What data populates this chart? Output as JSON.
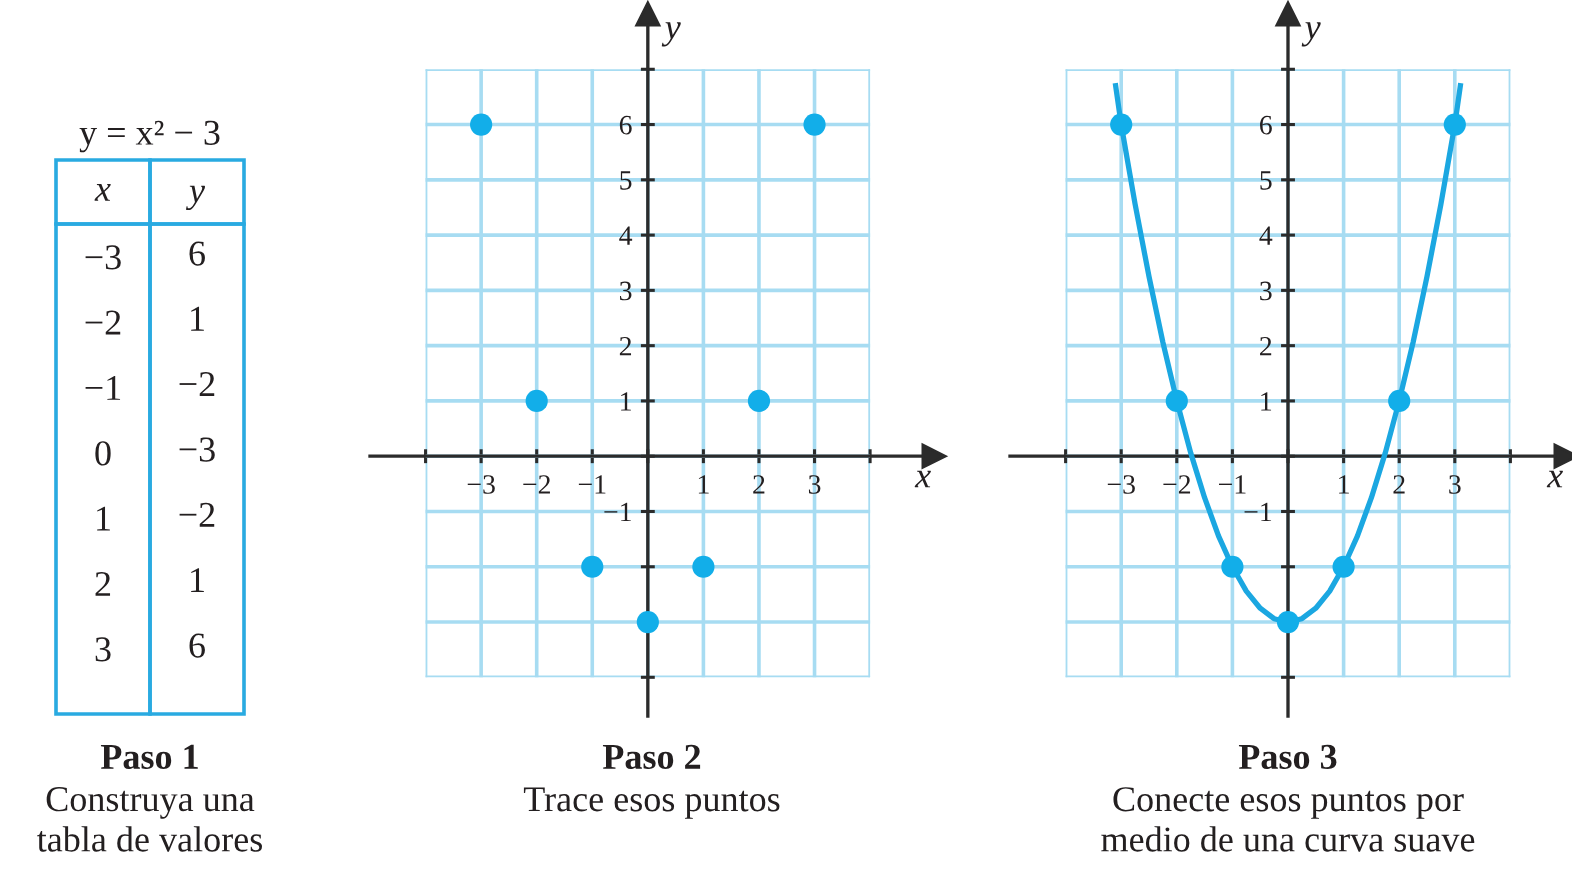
{
  "chart_data": [
    {
      "type": "heatmap",
      "title": "Paso 1",
      "subtitle": "Construya una\ntabla de valores",
      "annotations": [
        "y = x² − 3"
      ],
      "ylabel": "x",
      "categories": [
        "y"
      ],
      "y_categories": [
        "−3",
        "−2",
        "−1",
        "0",
        "1",
        "2",
        "3"
      ],
      "cells": [
        [
          6
        ],
        [
          1
        ],
        [
          -2
        ],
        [
          -3
        ],
        [
          -2
        ],
        [
          1
        ],
        [
          6
        ]
      ],
      "data_labels": true
    },
    {
      "type": "scatter",
      "title": "Paso 2",
      "subtitle": "Trace esos puntos",
      "xlabel": "x",
      "ylabel": "y",
      "x": [
        -3,
        -2,
        -1,
        0,
        1,
        2,
        3
      ],
      "values": [
        6,
        1,
        -2,
        -3,
        -2,
        1,
        6
      ],
      "color": "#12aee9",
      "marker": "circle",
      "grid": true,
      "xlim": [
        -5,
        5.15
      ],
      "ylim": [
        -4.7,
        8
      ],
      "xticks": [
        {
          "value": -4,
          "label": null
        },
        {
          "value": -3,
          "label": "−3"
        },
        {
          "value": -2,
          "label": "−2"
        },
        {
          "value": -1,
          "label": "−1"
        },
        {
          "value": 0,
          "label": null
        },
        1,
        2,
        3,
        {
          "value": 4,
          "label": null
        }
      ],
      "yticks": [
        {
          "value": -4,
          "label": null
        },
        {
          "value": -3,
          "label": null
        },
        {
          "value": -2,
          "label": null
        },
        {
          "value": -1,
          "label": "−1"
        },
        {
          "value": 0,
          "label": null
        },
        1,
        2,
        3,
        4,
        5,
        6,
        {
          "value": 7,
          "label": null
        }
      ]
    },
    {
      "type": "scatter",
      "title": "Paso 3",
      "subtitle": "Conecte esos puntos por\nmedio de una curva suave",
      "xlabel": "x",
      "ylabel": "y",
      "series": [
        {
          "type": "line",
          "color": "#1ba7e1",
          "line_style": "solid",
          "x": [
            -3.1,
            -3,
            -2.75,
            -2.5,
            -2.25,
            -2,
            -1.75,
            -1.5,
            -1.25,
            -1,
            -0.75,
            -0.5,
            -0.25,
            0,
            0.25,
            0.5,
            0.75,
            1,
            1.25,
            1.5,
            1.75,
            2,
            2.25,
            2.5,
            2.75,
            3,
            3.1
          ],
          "values": [
            6.7,
            6,
            4.56,
            3.25,
            2.06,
            1,
            0.06,
            -0.75,
            -1.44,
            -2,
            -2.44,
            -2.75,
            -2.94,
            -3,
            -2.94,
            -2.75,
            -2.44,
            -2,
            -1.44,
            -0.75,
            0.06,
            1,
            2.06,
            3.25,
            4.56,
            6,
            6.7
          ]
        },
        {
          "type": "scatter",
          "color": "#12aee9",
          "marker": "circle",
          "x": [
            -3,
            -2,
            -1,
            0,
            1,
            2,
            3
          ],
          "values": [
            6,
            1,
            -2,
            -3,
            -2,
            1,
            6
          ]
        }
      ],
      "grid": true,
      "xlim": [
        -5,
        5
      ],
      "ylim": [
        -4.7,
        8
      ],
      "xticks": [
        {
          "value": -4,
          "label": null
        },
        {
          "value": -3,
          "label": "−3"
        },
        {
          "value": -2,
          "label": "−2"
        },
        {
          "value": -1,
          "label": "−1"
        },
        {
          "value": 0,
          "label": null
        },
        1,
        2,
        3,
        {
          "value": 4,
          "label": null
        }
      ],
      "yticks": [
        {
          "value": -4,
          "label": null
        },
        {
          "value": -3,
          "label": null
        },
        {
          "value": -2,
          "label": null
        },
        {
          "value": -1,
          "label": "−1"
        },
        {
          "value": 0,
          "label": null
        },
        1,
        2,
        3,
        4,
        5,
        6,
        {
          "value": 7,
          "label": null
        }
      ]
    }
  ]
}
